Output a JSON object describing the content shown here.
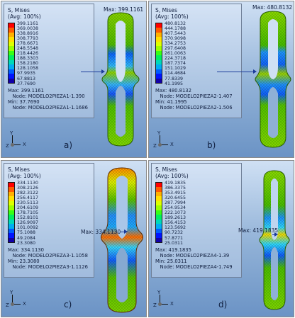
{
  "panels": [
    {
      "id": "a",
      "letter": "a)",
      "title": "S, Mises\n(Avg: 100%)",
      "values": "399.1161\n369.0038\n338.8916\n308.7793\n278.6671\n248.5548\n218.4426\n188.3303\n158.2180\n128.1058\n97.9935\n67.8813\n37.7690",
      "info": "Max: 399.1161\n   Node: MODELO2PIEZA1-1.390\nMin: 37.7690\n   Node: MODELO2PIEZA1-1.1686",
      "max_label": "Max: 399.1161"
    },
    {
      "id": "b",
      "letter": "b)",
      "title": "S, Mises\n(Avg: 100%)",
      "values": "480.8132\n444.1788\n407.5443\n370.9098\n334.2753\n297.6408\n261.0063\n224.3718\n187.7374\n151.1029\n114.4684\n77.8339\n41.1995",
      "info": "Max: 480.8132\n   Node: MODELO2PIEZA2-1.407\nMin: 41.1995\n   Node: MODELO2PIEZA2-1.506",
      "max_label": "Max: 480.8132"
    },
    {
      "id": "c",
      "letter": "c)",
      "title": "S, Mises\n(Avg: 100%)",
      "values": "334.1130\n308.2126\n282.3122\n256.4117\n230.5113\n204.6109\n178.7105\n152.8101\n126.9097\n101.0092\n75.1088\n49.2084\n23.3080",
      "info": "Max: 334.1130\n   Node: MODELO2PIEZA3-1.1058\nMin: 23.3080\n   Node: MODELO2PIEZA3-1.1126",
      "max_label": "Max: 334.1130"
    },
    {
      "id": "d",
      "letter": "d)",
      "title": "S, Mises\n(Avg: 100%)",
      "values": "419.1835\n386.3375\n353.4915\n320.6455\n287.7994\n254.9534\n222.1073\n189.2613\n156.4153\n123.5692\n90.7232\n57.8771\n25.0311",
      "info": "Max: 419.1835\n   Node: MODELO2PIEZA4-1.39\nMin: 25.0311\n   Node: MODELO2PIEZA4-1.749",
      "max_label": "Max: 419.1835"
    }
  ],
  "triad": {
    "x_label": "X",
    "y_label": "Y",
    "z_label": "Z"
  },
  "colors": {
    "legend": [
      "#ff0000",
      "#ff5b00",
      "#ffb000",
      "#ffe000",
      "#dfff00",
      "#9dff00",
      "#38ff14",
      "#00f05e",
      "#00d9b9",
      "#00aef2",
      "#005cff",
      "#0014ff",
      "#1200a8"
    ],
    "background_top": "#cfe0f4",
    "background_bottom": "#6b93c5"
  }
}
